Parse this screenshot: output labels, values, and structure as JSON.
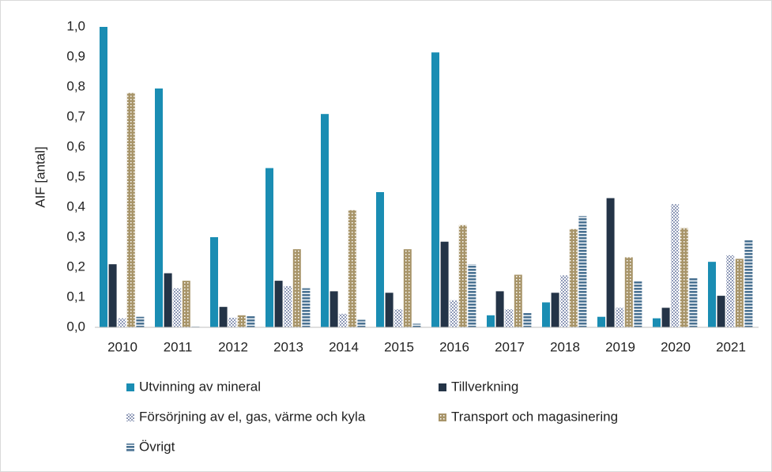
{
  "chart_data": {
    "type": "bar",
    "ylabel": "AIF [antal]",
    "categories": [
      "2010",
      "2011",
      "2012",
      "2013",
      "2014",
      "2015",
      "2016",
      "2017",
      "2018",
      "2019",
      "2020",
      "2021"
    ],
    "series": [
      {
        "name": "Utvinning av mineral",
        "color": "#1a8db3",
        "pattern": "solid",
        "values": [
          1.0,
          0.795,
          0.3,
          0.53,
          0.71,
          0.45,
          0.915,
          0.04,
          0.083,
          0.035,
          0.03,
          0.218
        ]
      },
      {
        "name": "Tillverkning",
        "color": "#243447",
        "pattern": "solid",
        "values": [
          0.21,
          0.18,
          0.068,
          0.155,
          0.12,
          0.115,
          0.285,
          0.12,
          0.115,
          0.43,
          0.065,
          0.105
        ]
      },
      {
        "name": "Försörjning av el, gas, värme och kyla",
        "color": "#8f9ab8",
        "pattern": "checker",
        "values": [
          0.03,
          0.13,
          0.032,
          0.137,
          0.045,
          0.06,
          0.09,
          0.06,
          0.173,
          0.065,
          0.41,
          0.24
        ]
      },
      {
        "name": "Transport och magasinering",
        "color": "#a8956a",
        "pattern": "dots",
        "values": [
          0.78,
          0.155,
          0.04,
          0.26,
          0.39,
          0.26,
          0.34,
          0.175,
          0.327,
          0.233,
          0.33,
          0.228
        ]
      },
      {
        "name": "Övrigt",
        "color": "#4a7292",
        "pattern": "stripes",
        "values": [
          0.035,
          0.002,
          0.037,
          0.13,
          0.025,
          0.012,
          0.21,
          0.048,
          0.37,
          0.155,
          0.165,
          0.29
        ]
      }
    ],
    "ylim": [
      0,
      1.0
    ],
    "yticks": [
      {
        "value": 0,
        "label": "0,0"
      },
      {
        "value": 0.1,
        "label": "0,1"
      },
      {
        "value": 0.2,
        "label": "0,2"
      },
      {
        "value": 0.3,
        "label": "0,3"
      },
      {
        "value": 0.4,
        "label": "0,4"
      },
      {
        "value": 0.5,
        "label": "0,5"
      },
      {
        "value": 0.6,
        "label": "0,6"
      },
      {
        "value": 0.7,
        "label": "0,7"
      },
      {
        "value": 0.8,
        "label": "0,8"
      },
      {
        "value": 0.9,
        "label": "0,9"
      },
      {
        "value": 1.0,
        "label": "1,0"
      }
    ],
    "grid": false
  }
}
